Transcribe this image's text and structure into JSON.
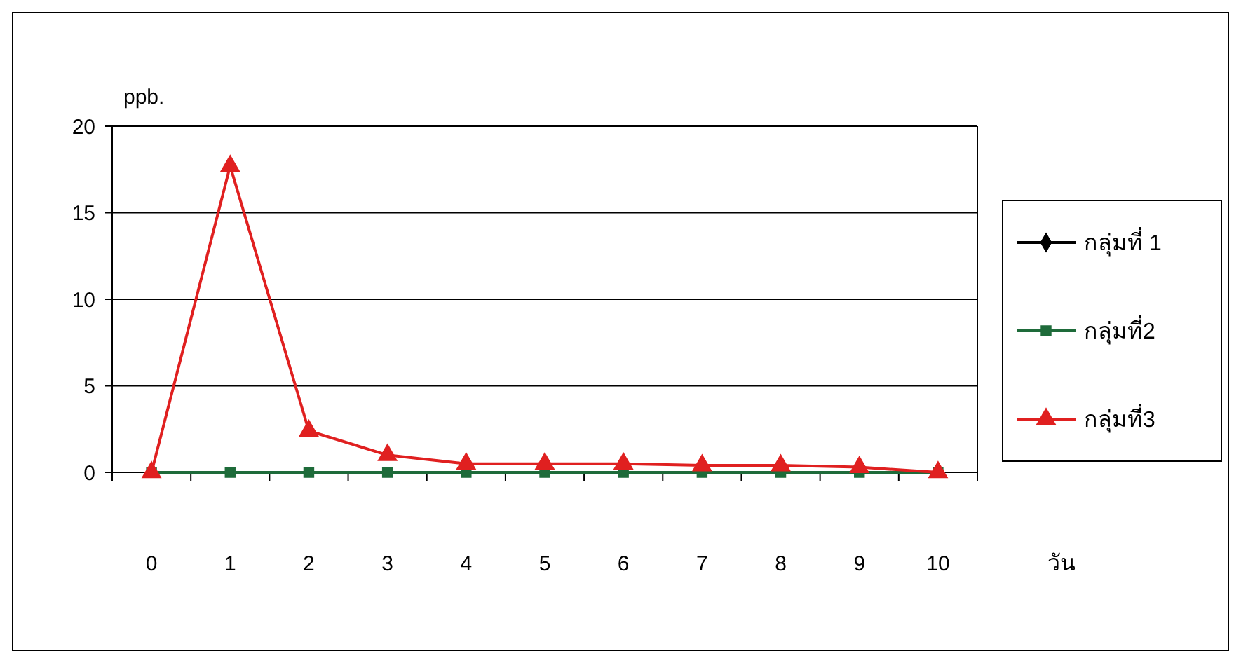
{
  "chart_data": {
    "type": "line",
    "ylabel": "ppb.",
    "xlabel": "วัน",
    "categories": [
      "0",
      "1",
      "2",
      "3",
      "4",
      "5",
      "6",
      "7",
      "8",
      "9",
      "10"
    ],
    "series": [
      {
        "name": "กลุ่มที่ 1",
        "color": "#000000",
        "marker": "diamond",
        "values": [
          null,
          null,
          null,
          null,
          null,
          null,
          null,
          null,
          null,
          null,
          null
        ]
      },
      {
        "name": "กลุ่มที่2",
        "color": "#1e6b3a",
        "marker": "square",
        "values": [
          0,
          0,
          0,
          0,
          0,
          0,
          0,
          0,
          0,
          0,
          0
        ]
      },
      {
        "name": "กลุ่มที่3",
        "color": "#e02020",
        "marker": "triangle",
        "values": [
          0,
          17.7,
          2.4,
          1.0,
          0.5,
          0.5,
          0.5,
          0.4,
          0.4,
          0.3,
          0
        ]
      }
    ],
    "ylim": [
      0,
      20
    ],
    "yticks": [
      0,
      5,
      10,
      15,
      20
    ],
    "grid": "y",
    "legend": "right"
  }
}
